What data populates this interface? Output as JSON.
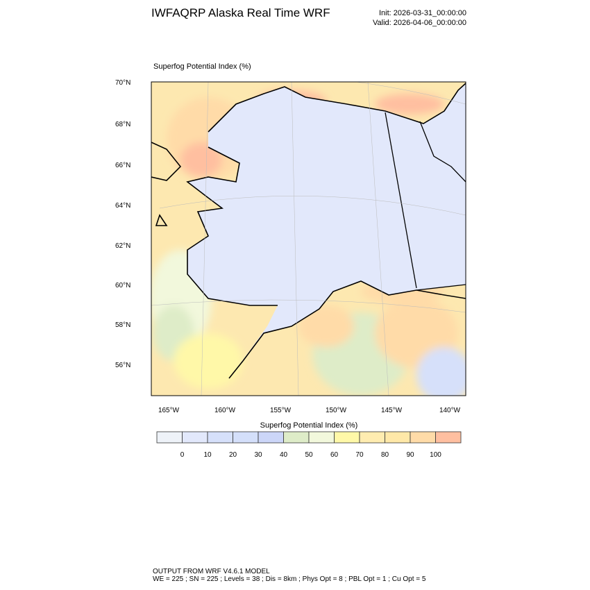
{
  "header": {
    "title": "IWFAQRP Alaska Real Time WRF",
    "init": "Init: 2026-03-31_00:00:00",
    "valid": "Valid: 2026-04-06_00:00:00"
  },
  "map": {
    "subtitle": "Superfog Potential Index   (%)",
    "lat_labels": [
      "70°N",
      "68°N",
      "66°N",
      "64°N",
      "62°N",
      "60°N",
      "58°N",
      "56°N"
    ],
    "lon_labels": [
      "165°W",
      "160°W",
      "155°W",
      "150°W",
      "145°W",
      "140°W"
    ]
  },
  "colorbar": {
    "title": "Superfog Potential Index  (%)",
    "labels": [
      "0",
      "10",
      "20",
      "30",
      "40",
      "50",
      "60",
      "70",
      "80",
      "90",
      "100"
    ],
    "colors": [
      "#eef2f8",
      "#e2e8fb",
      "#d6e0fa",
      "#d4dffa",
      "#ccd6f8",
      "#deecc8",
      "#f2f8dc",
      "#fff8a8",
      "#ffecb0",
      "#ffe8a8",
      "#ffdba8",
      "#ffbfa0"
    ]
  },
  "footer": {
    "line1": "OUTPUT FROM WRF V4.6.1 MODEL",
    "line2": "WE = 225 ; SN = 225 ; Levels = 38 ; Dis = 8km ; Phys Opt = 8 ; PBL Opt = 1 ; Cu Opt = 5"
  }
}
